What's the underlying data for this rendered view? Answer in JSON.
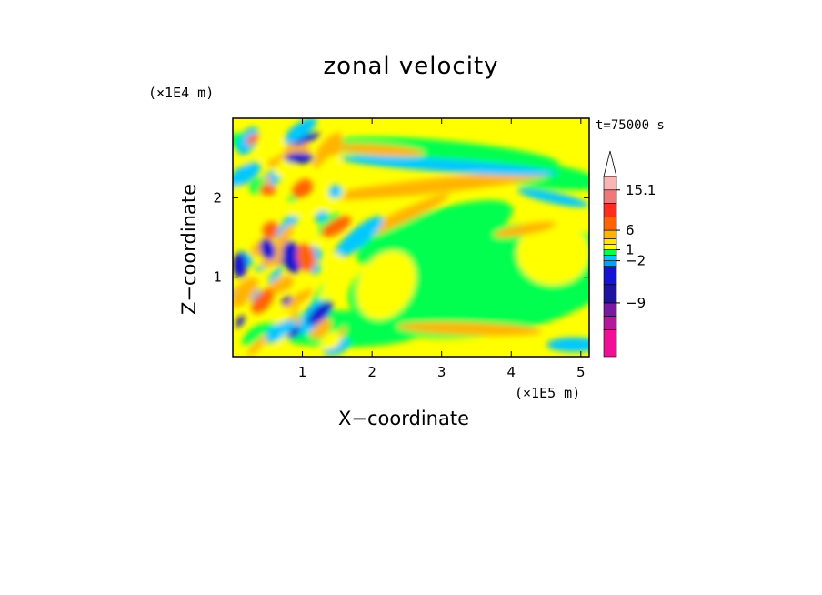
{
  "chart_data": {
    "type": "heatmap",
    "title": "zonal velocity",
    "annotation": "t=75000 s",
    "xlabel": "X−coordinate",
    "ylabel": "Z−coordinate",
    "x_unit": "(×1E5 m)",
    "z_unit": "(×1E4 m)",
    "x_ticks": [
      "1",
      "2",
      "3",
      "4",
      "5"
    ],
    "z_ticks": [
      "1",
      "2"
    ],
    "xlim": [
      0,
      5.12
    ],
    "zlim": [
      0,
      3.0
    ],
    "colorbar": {
      "labels": [
        "15.1",
        "6",
        "1",
        "−2",
        "−9"
      ],
      "extend": "max",
      "colors": [
        "#f20f96",
        "#b4189c",
        "#7a1aa0",
        "#1e14a0",
        "#1414d2",
        "#00a0ff",
        "#00c8ff",
        "#00ff50",
        "#ffff00",
        "#ffe600",
        "#ffb400",
        "#ff6400",
        "#ff2d1e",
        "#f07878",
        "#fab4b4",
        "#ffffff"
      ]
    },
    "field_colors": {
      "strong_negative": "#1414d2",
      "negative": "#00c8ff",
      "weak_negative": "#00ff50",
      "near_zero": "#ffff00",
      "weak_positive": "#ffe600",
      "positive": "#ffb400",
      "strong_positive": "#ff6400"
    }
  }
}
